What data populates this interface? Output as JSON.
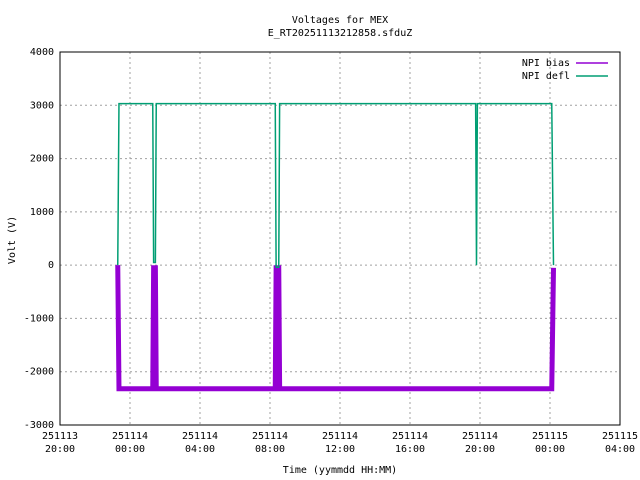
{
  "chart_data": {
    "type": "line",
    "title": "Voltages for MEX",
    "subtitle": "E_RT20251113212858.sfduZ",
    "x_label": "Time (yymmdd HH:MM)",
    "y_label": "Volt (V)",
    "x": [
      3.3,
      3.37,
      5.3,
      5.35,
      5.45,
      5.5,
      12.3,
      12.35,
      12.5,
      12.55,
      23.75,
      23.8,
      23.85,
      28.1,
      28.2
    ],
    "series": [
      {
        "name": "NPI bias",
        "color": "#9400d3",
        "values": [
          0,
          -2320,
          -2320,
          -50,
          -50,
          -2320,
          -2320,
          -50,
          -50,
          -2320,
          -2320,
          -2320,
          -2320,
          -2320,
          -50
        ]
      },
      {
        "name": "NPI defl",
        "color": "#009e73",
        "values": [
          0,
          3030,
          3030,
          50,
          50,
          3030,
          3030,
          -40,
          -40,
          3030,
          3030,
          0,
          3030,
          3030,
          0
        ]
      }
    ],
    "xlim": [
      0,
      32
    ],
    "ylim": [
      -3000,
      4000
    ],
    "xticks": [
      {
        "value": 0,
        "label": "251113\n20:00"
      },
      {
        "value": 4,
        "label": "251114\n00:00"
      },
      {
        "value": 8,
        "label": "251114\n04:00"
      },
      {
        "value": 12,
        "label": "251114\n08:00"
      },
      {
        "value": 16,
        "label": "251114\n12:00"
      },
      {
        "value": 20,
        "label": "251114\n16:00"
      },
      {
        "value": 24,
        "label": "251114\n20:00"
      },
      {
        "value": 28,
        "label": "251115\n00:00"
      },
      {
        "value": 32,
        "label": "251115\n04:00"
      }
    ],
    "yticks": [
      -3000,
      -2000,
      -1000,
      0,
      1000,
      2000,
      3000,
      4000
    ],
    "grid": true,
    "legend": "top-right"
  }
}
